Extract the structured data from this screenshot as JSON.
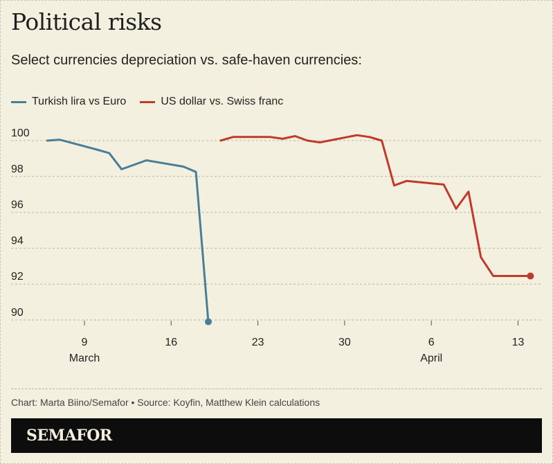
{
  "title": "Political risks",
  "subtitle": "Select currencies depreciation vs. safe-haven currencies:",
  "legend": [
    {
      "label": "Turkish lira vs Euro",
      "color": "#4a7d98"
    },
    {
      "label": "US dollar vs. Swiss franc",
      "color": "#c0392b"
    }
  ],
  "source": "Chart: Marta Biino/Semafor • Source: Koyfin, Matthew Klein calculations",
  "brand": "SEMAFOR",
  "chart_data": {
    "type": "line",
    "x_ticks": [
      {
        "label": "9",
        "x": "2025-03-09"
      },
      {
        "label": "16",
        "x": "2025-03-16"
      },
      {
        "label": "23",
        "x": "2025-03-23"
      },
      {
        "label": "30",
        "x": "2025-03-30"
      },
      {
        "label": "6",
        "x": "2025-04-06"
      },
      {
        "label": "13",
        "x": "2025-04-13"
      }
    ],
    "month_labels": [
      {
        "label": "March",
        "x": "2025-03-09"
      },
      {
        "label": "April",
        "x": "2025-04-06"
      }
    ],
    "y_ticks": [
      90,
      92,
      94,
      96,
      98,
      100
    ],
    "ylim": [
      90,
      100
    ],
    "grid": true,
    "series": [
      {
        "name": "Turkish lira vs Euro",
        "color": "#4a7d98",
        "end_marker": true,
        "points": [
          {
            "x": "2025-03-06",
            "y": 100.0
          },
          {
            "x": "2025-03-07",
            "y": 100.05
          },
          {
            "x": "2025-03-10",
            "y": 99.5
          },
          {
            "x": "2025-03-11",
            "y": 99.3
          },
          {
            "x": "2025-03-12",
            "y": 98.4
          },
          {
            "x": "2025-03-14",
            "y": 98.9
          },
          {
            "x": "2025-03-17",
            "y": 98.55
          },
          {
            "x": "2025-03-18",
            "y": 98.25
          },
          {
            "x": "2025-03-19",
            "y": 89.9
          }
        ]
      },
      {
        "name": "US dollar vs. Swiss franc",
        "color": "#c0392b",
        "end_marker": true,
        "points": [
          {
            "x": "2025-03-20",
            "y": 100.0
          },
          {
            "x": "2025-03-21",
            "y": 100.2
          },
          {
            "x": "2025-03-24",
            "y": 100.2
          },
          {
            "x": "2025-03-25",
            "y": 100.1
          },
          {
            "x": "2025-03-26",
            "y": 100.25
          },
          {
            "x": "2025-03-27",
            "y": 100.0
          },
          {
            "x": "2025-03-28",
            "y": 99.9
          },
          {
            "x": "2025-03-31",
            "y": 100.3
          },
          {
            "x": "2025-04-01",
            "y": 100.2
          },
          {
            "x": "2025-04-02",
            "y": 100.0
          },
          {
            "x": "2025-04-03",
            "y": 97.5
          },
          {
            "x": "2025-04-04",
            "y": 97.75
          },
          {
            "x": "2025-04-07",
            "y": 97.55
          },
          {
            "x": "2025-04-08",
            "y": 96.2
          },
          {
            "x": "2025-04-09",
            "y": 97.15
          },
          {
            "x": "2025-04-10",
            "y": 93.5
          },
          {
            "x": "2025-04-11",
            "y": 92.45
          },
          {
            "x": "2025-04-14",
            "y": 92.45
          }
        ]
      }
    ]
  }
}
